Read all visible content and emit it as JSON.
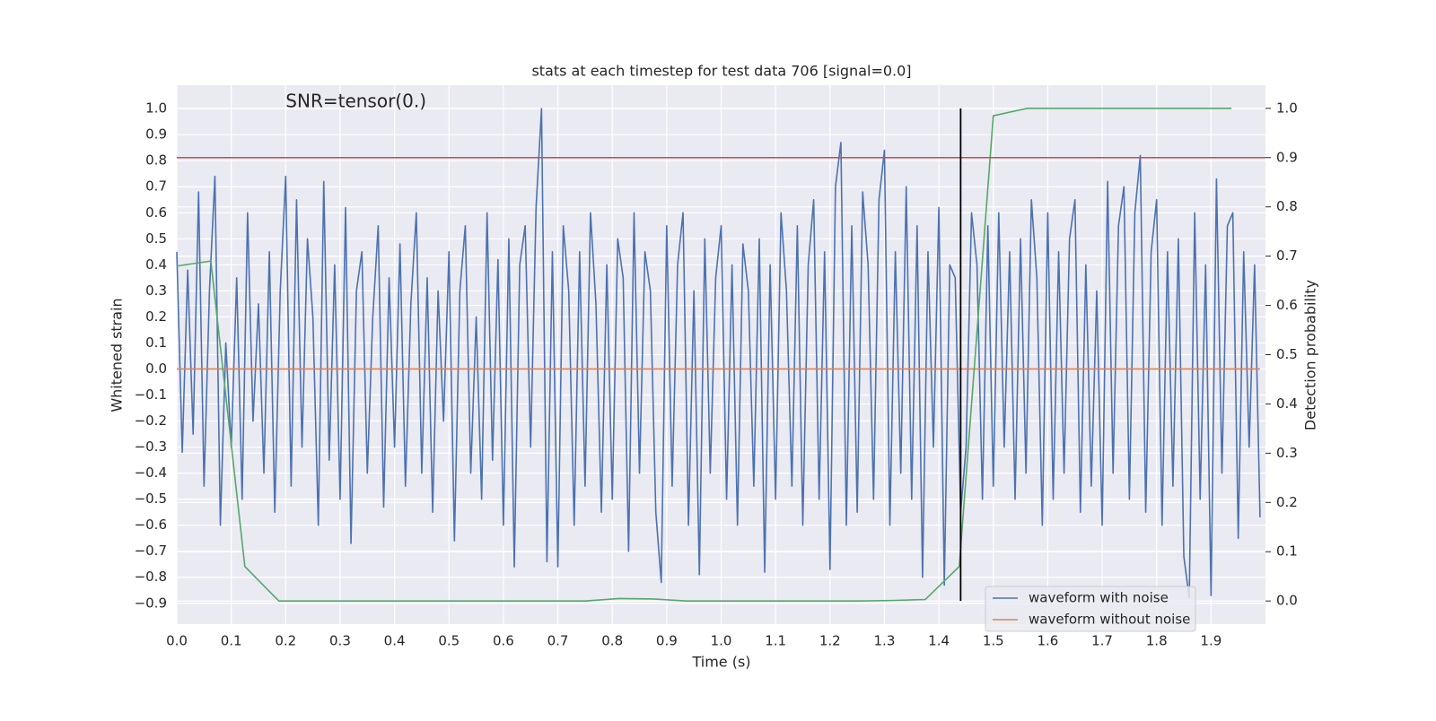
{
  "chart_data": {
    "type": "line",
    "title": "stats at each timestep for test data 706 [signal=0.0]",
    "xlabel": "Time (s)",
    "ylabel": "Whitened strain",
    "y2label": "Detection probability",
    "xlim": [
      0,
      2.0
    ],
    "ylim": [
      -0.98,
      1.09
    ],
    "y2lim": [
      -0.047,
      1.047
    ],
    "xticks": [
      {
        "value": 0,
        "label": "0.0"
      },
      0.1,
      0.2,
      0.3,
      0.4,
      0.5,
      0.6,
      0.7,
      0.8,
      0.9,
      {
        "value": 1,
        "label": "1.0"
      },
      1.1,
      1.2,
      1.3,
      1.4,
      1.5,
      1.6,
      1.7,
      1.8,
      1.9
    ],
    "yticks": [
      {
        "value": -0.9,
        "label": "−0.9"
      },
      {
        "value": -0.8,
        "label": "−0.8"
      },
      {
        "value": -0.7,
        "label": "−0.7"
      },
      {
        "value": -0.6,
        "label": "−0.6"
      },
      {
        "value": -0.5,
        "label": "−0.5"
      },
      {
        "value": -0.4,
        "label": "−0.4"
      },
      {
        "value": -0.3,
        "label": "−0.3"
      },
      {
        "value": -0.2,
        "label": "−0.2"
      },
      {
        "value": -0.1,
        "label": "−0.1"
      },
      {
        "value": 0,
        "label": "0.0"
      },
      0.1,
      0.2,
      0.3,
      0.4,
      0.5,
      0.6,
      0.7,
      0.8,
      0.9,
      {
        "value": 1,
        "label": "1.0"
      }
    ],
    "y2ticks": [
      {
        "value": 0,
        "label": "0.0"
      },
      0.1,
      0.2,
      0.3,
      0.4,
      0.5,
      0.6,
      0.7,
      0.8,
      0.9,
      {
        "value": 1,
        "label": "1.0"
      }
    ],
    "grid": true,
    "legend": "lower right",
    "annotation": {
      "text": "SNR=tensor(0.)",
      "x": 0.2,
      "y": 1.0
    },
    "hlines": [
      {
        "value": 0.9,
        "axis": "y2",
        "color": "#c44e52"
      }
    ],
    "vlines": [
      {
        "value": 1.44,
        "axis": "y2",
        "ymin": 0,
        "ymax": 1,
        "color": "#000000"
      }
    ],
    "series": [
      {
        "name": "waveform with noise",
        "color": "#4c72b0",
        "axis": "y",
        "x": [
          0,
          0.01,
          0.02,
          0.03,
          0.04,
          0.05,
          0.06,
          0.07,
          0.08,
          0.09,
          0.1,
          0.11,
          0.12,
          0.13,
          0.14,
          0.15,
          0.16,
          0.17,
          0.18,
          0.19,
          0.2,
          0.21,
          0.22,
          0.23,
          0.24,
          0.25,
          0.26,
          0.27,
          0.28,
          0.29,
          0.3,
          0.31,
          0.32,
          0.33,
          0.34,
          0.35,
          0.36,
          0.37,
          0.38,
          0.39,
          0.4,
          0.41,
          0.42,
          0.43,
          0.44,
          0.45,
          0.46,
          0.47,
          0.48,
          0.49,
          0.5,
          0.51,
          0.52,
          0.53,
          0.54,
          0.55,
          0.56,
          0.57,
          0.58,
          0.59,
          0.6,
          0.61,
          0.62,
          0.63,
          0.64,
          0.65,
          0.66,
          0.67,
          0.68,
          0.69,
          0.7,
          0.71,
          0.72,
          0.73,
          0.74,
          0.75,
          0.76,
          0.77,
          0.78,
          0.79,
          0.8,
          0.81,
          0.82,
          0.83,
          0.84,
          0.85,
          0.86,
          0.87,
          0.88,
          0.89,
          0.9,
          0.91,
          0.92,
          0.93,
          0.94,
          0.95,
          0.96,
          0.97,
          0.98,
          0.99,
          1,
          1.01,
          1.02,
          1.03,
          1.04,
          1.05,
          1.06,
          1.07,
          1.08,
          1.09,
          1.1,
          1.11,
          1.12,
          1.13,
          1.14,
          1.15,
          1.16,
          1.17,
          1.18,
          1.19,
          1.2,
          1.21,
          1.22,
          1.23,
          1.24,
          1.25,
          1.26,
          1.27,
          1.28,
          1.29,
          1.3,
          1.31,
          1.32,
          1.33,
          1.34,
          1.35,
          1.36,
          1.37,
          1.38,
          1.39,
          1.4,
          1.41,
          1.42,
          1.43,
          1.44,
          1.45,
          1.46,
          1.47,
          1.48,
          1.49,
          1.5,
          1.51,
          1.52,
          1.53,
          1.54,
          1.55,
          1.56,
          1.57,
          1.58,
          1.59,
          1.6,
          1.61,
          1.62,
          1.63,
          1.64,
          1.65,
          1.66,
          1.67,
          1.68,
          1.69,
          1.7,
          1.71,
          1.72,
          1.73,
          1.74,
          1.75,
          1.76,
          1.77,
          1.78,
          1.79,
          1.8,
          1.81,
          1.82,
          1.83,
          1.84,
          1.85,
          1.86,
          1.87,
          1.88,
          1.89,
          1.9,
          1.91,
          1.92,
          1.93,
          1.94,
          1.95,
          1.96,
          1.97,
          1.98,
          1.99
        ],
        "values": [
          0.45,
          -0.32,
          0.38,
          -0.25,
          0.68,
          -0.45,
          0.3,
          0.74,
          -0.6,
          0.1,
          -0.3,
          0.35,
          -0.5,
          0.6,
          -0.2,
          0.25,
          -0.4,
          0.45,
          -0.55,
          0.3,
          0.74,
          -0.45,
          0.65,
          -0.3,
          0.5,
          0.2,
          -0.6,
          0.72,
          -0.35,
          0.4,
          -0.5,
          0.62,
          -0.67,
          0.3,
          0.45,
          -0.4,
          0.2,
          0.55,
          -0.53,
          0.35,
          -0.3,
          0.48,
          -0.45,
          0.25,
          0.6,
          -0.4,
          0.35,
          -0.55,
          0.3,
          -0.2,
          0.45,
          -0.66,
          0.3,
          0.55,
          -0.4,
          0.2,
          -0.5,
          0.6,
          -0.35,
          0.42,
          -0.6,
          0.5,
          -0.76,
          0.4,
          0.55,
          -0.3,
          0.62,
          1.0,
          -0.74,
          0.45,
          -0.76,
          0.55,
          0.3,
          -0.6,
          0.45,
          -0.45,
          0.6,
          0.25,
          -0.55,
          0.4,
          -0.5,
          0.5,
          0.35,
          -0.7,
          0.6,
          -0.4,
          0.45,
          0.3,
          -0.55,
          -0.82,
          0.55,
          -0.45,
          0.4,
          0.6,
          -0.6,
          0.3,
          -0.79,
          0.5,
          -0.4,
          0.35,
          0.55,
          -0.5,
          0.4,
          -0.6,
          0.48,
          0.3,
          -0.45,
          0.5,
          -0.78,
          0.4,
          -0.5,
          0.6,
          0.3,
          -0.45,
          0.55,
          -0.6,
          0.4,
          0.65,
          -0.5,
          0.45,
          -0.77,
          0.7,
          0.87,
          -0.6,
          0.55,
          -0.55,
          0.68,
          0.4,
          -0.5,
          0.65,
          0.84,
          -0.6,
          0.45,
          -0.4,
          0.7,
          -0.5,
          0.55,
          -0.8,
          0.45,
          -0.3,
          0.62,
          -0.83,
          0.4,
          0.35,
          -0.55,
          -0.3,
          0.6,
          0.4,
          -0.5,
          0.55,
          -0.45,
          0.6,
          -0.3,
          0.45,
          -0.5,
          0.5,
          -0.4,
          0.65,
          0.35,
          -0.6,
          0.6,
          -0.5,
          0.45,
          -0.4,
          0.5,
          0.65,
          -0.55,
          0.4,
          -0.45,
          0.3,
          -0.6,
          0.72,
          -0.4,
          0.55,
          0.7,
          -0.5,
          0.6,
          0.82,
          -0.55,
          0.45,
          0.65,
          -0.6,
          0.45,
          -0.45,
          0.5,
          -0.72,
          -0.88,
          0.6,
          -0.5,
          0.4,
          -0.87,
          0.73,
          -0.4,
          0.55,
          0.6,
          -0.65,
          0.45,
          -0.3,
          0.4,
          -0.57
        ]
      },
      {
        "name": "waveform without noise",
        "color": "#dd8452",
        "axis": "y",
        "x": [
          0,
          1.99
        ],
        "values": [
          0,
          0
        ]
      },
      {
        "color": "#55a868",
        "axis": "y2",
        "x": [
          0,
          0.0625,
          0.125,
          0.1875,
          0.25,
          0.3125,
          0.375,
          0.4375,
          0.5,
          0.5625,
          0.625,
          0.6875,
          0.75,
          0.8125,
          0.875,
          0.9375,
          1,
          1.0625,
          1.125,
          1.1875,
          1.25,
          1.3125,
          1.375,
          1.4375,
          1.5,
          1.5625,
          1.625,
          1.6875,
          1.75,
          1.8125,
          1.875,
          1.9375
        ],
        "values": [
          0.68,
          0.69,
          0.07,
          0,
          0,
          0,
          0,
          0,
          0,
          0,
          0,
          0,
          0,
          0.005,
          0.004,
          0,
          0,
          0,
          0,
          0,
          0,
          0.001,
          0.003,
          0.07,
          0.985,
          1,
          1,
          1,
          1,
          1,
          1,
          1
        ]
      }
    ]
  }
}
